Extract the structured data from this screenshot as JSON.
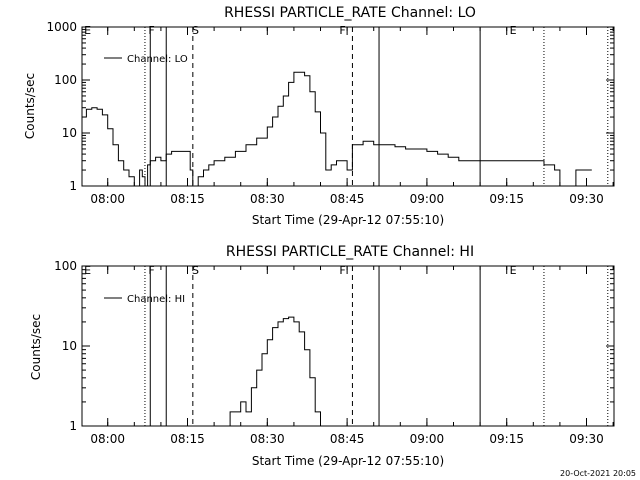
{
  "timestamp": "20-Oct-2021 20:05",
  "chart_data": [
    {
      "type": "line",
      "title": "RHESSI PARTICLE_RATE Channel: LO",
      "xlabel": "Start Time (29-Apr-12 07:55:10)",
      "ylabel": "Counts/sec",
      "legend_label": "Channel: LO",
      "legend_position": "top-left",
      "yscale": "log",
      "ylim": [
        1,
        1000
      ],
      "xlim_minutes_after_start": [
        0,
        100
      ],
      "x_tick_labels": [
        "08:00",
        "08:15",
        "08:30",
        "08:45",
        "09:00",
        "09:15",
        "09:30"
      ],
      "y_tick_labels": [
        "1",
        "10",
        "100",
        "1000"
      ],
      "flags": [
        "E",
        "F",
        "S",
        "F",
        "E"
      ],
      "vertical_markers_time": [
        "08:07",
        "08:08",
        "08:11",
        "08:16",
        "08:46",
        "08:51",
        "09:10",
        "09:22",
        "09:34"
      ],
      "series": [
        {
          "x_time": [
            "07:55:10",
            "07:56",
            "07:57",
            "07:58",
            "07:59",
            "08:00",
            "08:01",
            "08:02",
            "08:03",
            "08:04",
            "08:05",
            "08:05:30",
            "08:06",
            "08:06:30",
            "08:07",
            "08:07:30",
            "08:08",
            "08:09",
            "08:10",
            "08:11",
            "08:12",
            "08:13",
            "08:14",
            "08:15",
            "08:15:30",
            "08:16",
            "08:17",
            "08:18",
            "08:19",
            "08:20",
            "08:22",
            "08:24",
            "08:26",
            "08:28",
            "08:30",
            "08:31",
            "08:32",
            "08:33",
            "08:34",
            "08:35",
            "08:36",
            "08:37",
            "08:38",
            "08:39",
            "08:40",
            "08:41",
            "08:42",
            "08:43",
            "08:44",
            "08:45",
            "08:46",
            "08:48",
            "08:50",
            "08:52",
            "08:54",
            "08:56",
            "08:58",
            "09:00",
            "09:02",
            "09:04",
            "09:06",
            "09:08",
            "09:10",
            "09:12",
            "09:14",
            "09:16",
            "09:18",
            "09:20",
            "09:22",
            "09:24",
            "09:25",
            "09:26",
            "09:28",
            "09:30",
            "09:31"
          ],
          "values": [
            20,
            28,
            30,
            28,
            22,
            12,
            6,
            3,
            2,
            1.5,
            1,
            1,
            2,
            1.5,
            1,
            2.5,
            3,
            3.5,
            3,
            4,
            4.5,
            4.5,
            4.5,
            4.5,
            2,
            1,
            1.5,
            2,
            2.5,
            3,
            3.5,
            4.5,
            6,
            8,
            13,
            20,
            32,
            50,
            90,
            140,
            140,
            120,
            60,
            25,
            10,
            2,
            2.5,
            3,
            3,
            2,
            6,
            7,
            6,
            6,
            5.5,
            5,
            5,
            4.5,
            4,
            3.5,
            3,
            3,
            3,
            3,
            3,
            3,
            3,
            3,
            2.5,
            2,
            1,
            1,
            2,
            2,
            2
          ]
        }
      ]
    },
    {
      "type": "line",
      "title": "RHESSI PARTICLE_RATE Channel: HI",
      "xlabel": "Start Time (29-Apr-12 07:55:10)",
      "ylabel": "Counts/sec",
      "legend_label": "Channel: HI",
      "legend_position": "top-left",
      "yscale": "log",
      "ylim": [
        1,
        100
      ],
      "xlim_minutes_after_start": [
        0,
        100
      ],
      "x_tick_labels": [
        "08:00",
        "08:15",
        "08:30",
        "08:45",
        "09:00",
        "09:15",
        "09:30"
      ],
      "y_tick_labels": [
        "1",
        "10",
        "100"
      ],
      "flags": [
        "E",
        "F",
        "S",
        "F",
        "E"
      ],
      "vertical_markers_time": [
        "08:07",
        "08:08",
        "08:11",
        "08:16",
        "08:46",
        "08:51",
        "09:10",
        "09:22",
        "09:34"
      ],
      "series": [
        {
          "x_time": [
            "08:21",
            "08:22",
            "08:23",
            "08:24",
            "08:25",
            "08:26",
            "08:27",
            "08:28",
            "08:29",
            "08:30",
            "08:31",
            "08:32",
            "08:33",
            "08:34",
            "08:35",
            "08:36",
            "08:37",
            "08:38",
            "08:39",
            "08:40"
          ],
          "values": [
            1,
            1,
            1.5,
            1.5,
            2,
            1.5,
            3,
            5,
            8,
            12,
            17,
            20,
            22,
            23,
            20,
            15,
            9,
            4,
            1.5,
            1
          ]
        }
      ]
    }
  ]
}
